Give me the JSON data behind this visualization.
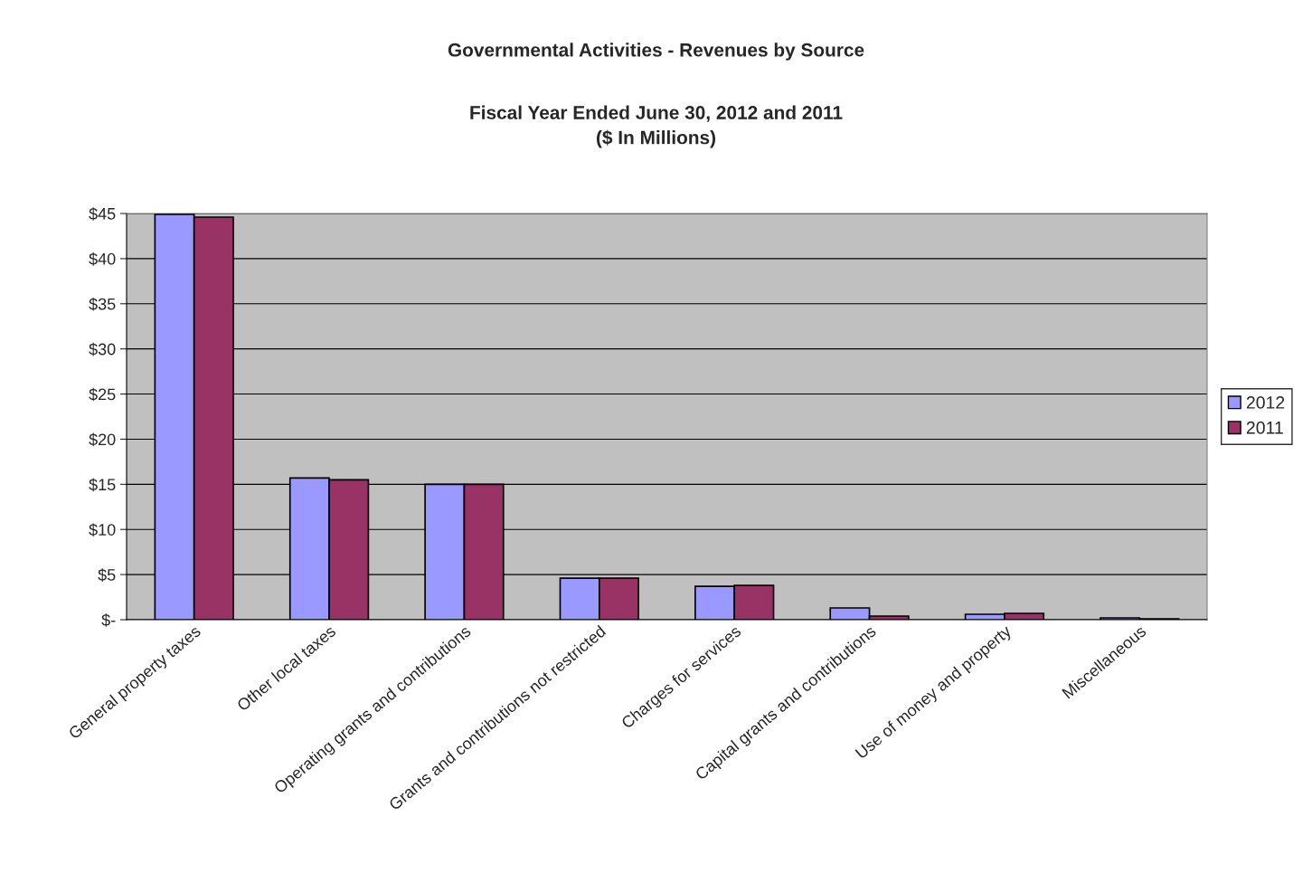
{
  "chart_data": {
    "type": "bar",
    "title": "Governmental Activities - Revenues by Source",
    "subtitle": "Fiscal Year Ended June 30, 2012 and 2011\n($ In Millions)",
    "categories": [
      "General property taxes",
      "Other local taxes",
      "Operating grants and contributions",
      "Grants and contributions not restricted",
      "Charges for services",
      "Capital grants and contributions",
      "Use of money and property",
      "Miscellaneous"
    ],
    "series": [
      {
        "name": "2012",
        "color": "#9999ff",
        "values": [
          44.9,
          15.7,
          15.0,
          4.6,
          3.7,
          1.3,
          0.6,
          0.2
        ]
      },
      {
        "name": "2011",
        "color": "#993366",
        "values": [
          44.6,
          15.5,
          15.0,
          4.6,
          3.8,
          0.4,
          0.7,
          0.1
        ]
      }
    ],
    "ylim": [
      0,
      45
    ],
    "yticks": [
      {
        "value": 0,
        "label": "$-"
      },
      {
        "value": 5,
        "label": "$5"
      },
      {
        "value": 10,
        "label": "$10"
      },
      {
        "value": 15,
        "label": "$15"
      },
      {
        "value": 20,
        "label": "$20"
      },
      {
        "value": 25,
        "label": "$25"
      },
      {
        "value": 30,
        "label": "$30"
      },
      {
        "value": 35,
        "label": "$35"
      },
      {
        "value": 40,
        "label": "$40"
      },
      {
        "value": 45,
        "label": "$45"
      }
    ],
    "grid": "y",
    "legend": "right"
  }
}
